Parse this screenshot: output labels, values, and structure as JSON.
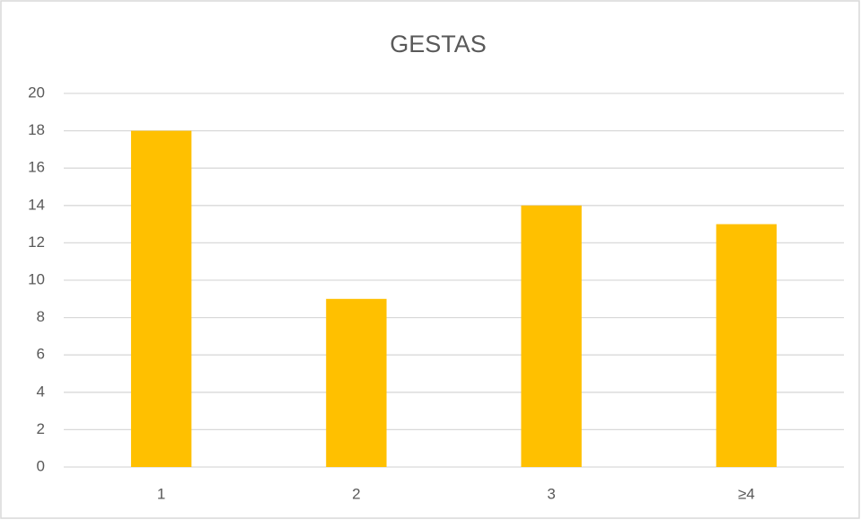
{
  "chart_data": {
    "type": "bar",
    "title": "GESTAS",
    "categories": [
      "1",
      "2",
      "3",
      "≥4"
    ],
    "values": [
      18,
      9,
      14,
      13
    ],
    "color": "#ffc000",
    "ylim": [
      0,
      20
    ],
    "yticks": [
      0,
      2,
      4,
      6,
      8,
      10,
      12,
      14,
      16,
      18,
      20
    ],
    "grid": true
  }
}
